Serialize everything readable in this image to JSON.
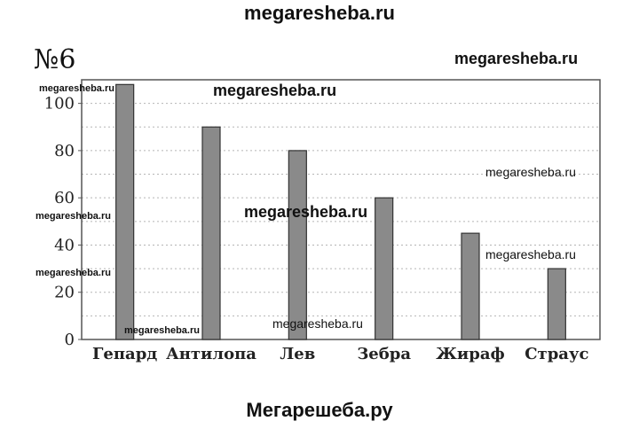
{
  "site_top": "megaresheba.ru",
  "site_bottom": "Мегарешеба.ру",
  "problem_number": "№6",
  "watermarks": [
    "megaresheba.ru",
    "megaresheba.ru",
    "megaresheba.ru",
    "megaresheba.ru",
    "megaresheba.ru",
    "megaresheba.ru",
    "megaresheba.ru",
    "megaresheba.ru",
    "megaresheba.ru",
    "megaresheba.ru",
    "megaresheba.ru"
  ],
  "colors": {
    "bar": "#8a8a8a",
    "grid": "#b5b5b5",
    "frame": "#555555"
  },
  "chart_data": {
    "type": "bar",
    "title": "",
    "xlabel": "",
    "ylabel": "",
    "categories": [
      "Гепард",
      "Антилопа",
      "Лев",
      "Зебра",
      "Жираф",
      "Страус"
    ],
    "values": [
      108,
      90,
      80,
      60,
      45,
      30
    ],
    "ylim": [
      0,
      110
    ],
    "yticks": [
      0,
      20,
      40,
      60,
      80,
      100
    ],
    "grid": true,
    "legend": "none"
  }
}
